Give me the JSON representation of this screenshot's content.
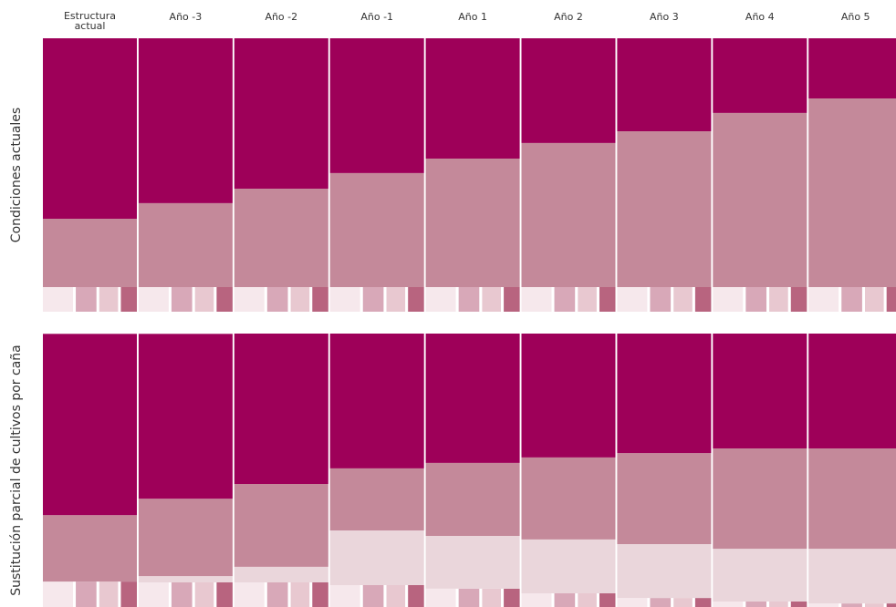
{
  "chart_data": [
    {
      "type": "stacked_bar",
      "ylabel": "Condiciones actuales",
      "categories": [
        "Estructura actual",
        "Año -3",
        "Año -2",
        "Año -1",
        "Año 1",
        "Año 2",
        "Año 3",
        "Año 4",
        "Año 5"
      ],
      "ylim": [
        0,
        100
      ],
      "strip_colors": [
        "#f6e8ec",
        "#d8a8b8",
        "#e8c8d0",
        "#b8647f"
      ],
      "series": [
        {
          "color": "strip",
          "values": [
            9,
            9,
            9,
            9,
            9,
            9,
            9,
            9,
            9
          ]
        },
        {
          "color": "#c4899a",
          "values": [
            25,
            30.7,
            36,
            41.7,
            47,
            52.7,
            57,
            63.7,
            69
          ]
        },
        {
          "color": "#9e0059",
          "values": [
            66,
            60.3,
            55,
            49.3,
            44,
            38.3,
            34,
            27.3,
            22
          ]
        }
      ]
    },
    {
      "type": "stacked_bar",
      "ylabel": "Sustitución parcial de cultivos por caña",
      "ylim": [
        0,
        100
      ],
      "strip_colors": [
        "#f6e8ec",
        "#d8a8b8",
        "#e8c8d0",
        "#b8647f"
      ],
      "series": [
        {
          "color": "strip",
          "values": [
            9.3,
            9,
            9,
            8,
            6.7,
            5,
            3.3,
            2,
            1.3
          ]
        },
        {
          "color": "#ead6db",
          "values": [
            0,
            2.3,
            5.7,
            20,
            19.3,
            19.7,
            19.7,
            19.3,
            20
          ]
        },
        {
          "color": "#c4899a",
          "values": [
            24.3,
            28.3,
            30.3,
            22.7,
            26.7,
            30,
            33.3,
            36.7,
            36.7
          ]
        },
        {
          "color": "#9e0059",
          "values": [
            66.3,
            60.3,
            55,
            49.3,
            47.3,
            45.3,
            43.7,
            42,
            42
          ]
        }
      ]
    }
  ]
}
